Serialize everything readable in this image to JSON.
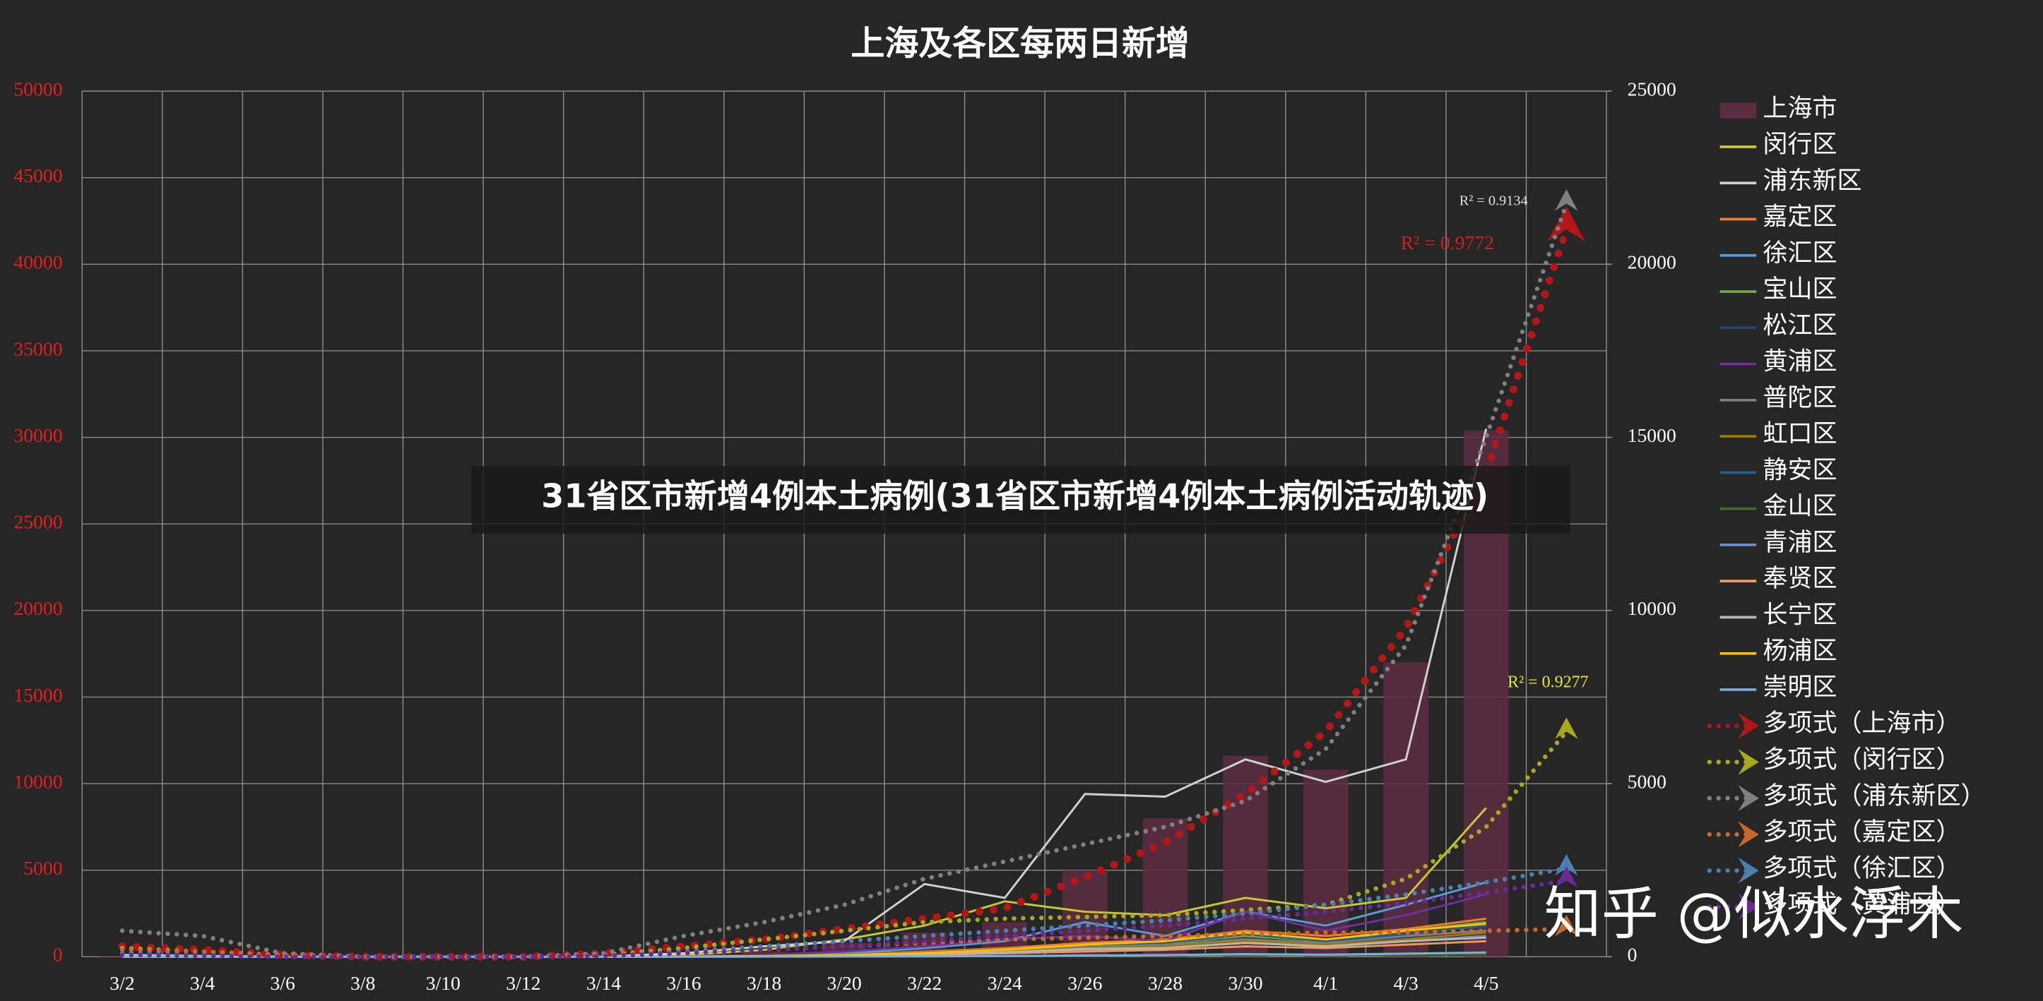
{
  "chart_data": {
    "type": "combo",
    "title": "上海及各区每两日新增",
    "categories": [
      "3/2",
      "3/4",
      "3/6",
      "3/8",
      "3/10",
      "3/12",
      "3/14",
      "3/16",
      "3/18",
      "3/20",
      "3/22",
      "3/24",
      "3/26",
      "3/28",
      "3/30",
      "4/1",
      "4/3",
      "4/5",
      null
    ],
    "ylim": [
      0,
      50000
    ],
    "yticks": [
      0,
      5000,
      10000,
      15000,
      20000,
      25000,
      30000,
      35000,
      40000,
      45000,
      50000
    ],
    "y2lim": [
      0,
      25000
    ],
    "y2ticks": [
      0,
      5000,
      10000,
      15000,
      20000,
      25000
    ],
    "grid": true,
    "series": [
      {
        "name": "上海市",
        "type": "bar",
        "axis": "y2",
        "color": "#5a2d40",
        "values": [
          20,
          10,
          5,
          5,
          5,
          5,
          10,
          50,
          150,
          400,
          700,
          1000,
          2500,
          4000,
          5800,
          5400,
          8500,
          15200,
          null
        ]
      },
      {
        "name": "闵行区",
        "type": "line",
        "color": "#c8c832",
        "values": [
          50,
          30,
          10,
          5,
          5,
          5,
          10,
          100,
          400,
          1000,
          1800,
          3200,
          2600,
          2400,
          3400,
          2800,
          3400,
          8600,
          null
        ]
      },
      {
        "name": "浦东新区",
        "type": "line",
        "color": "#d0d0d0",
        "values": [
          100,
          50,
          20,
          5,
          5,
          5,
          20,
          200,
          600,
          900,
          4200,
          3400,
          9400,
          9250,
          11400,
          10100,
          11400,
          30500,
          null
        ]
      },
      {
        "name": "嘉定区",
        "type": "line",
        "color": "#ed7d31",
        "values": [
          0,
          0,
          0,
          0,
          0,
          0,
          0,
          20,
          60,
          150,
          300,
          500,
          800,
          1000,
          1500,
          1200,
          1600,
          2200,
          null
        ]
      },
      {
        "name": "徐汇区",
        "type": "line",
        "color": "#5b9bd5",
        "values": [
          0,
          0,
          0,
          0,
          0,
          0,
          0,
          30,
          80,
          200,
          500,
          900,
          2000,
          1200,
          2600,
          1800,
          3000,
          4300,
          null
        ]
      },
      {
        "name": "宝山区",
        "type": "line",
        "color": "#70ad47",
        "values": [
          0,
          0,
          0,
          0,
          0,
          0,
          0,
          10,
          50,
          100,
          200,
          400,
          700,
          800,
          1200,
          900,
          1500,
          2000,
          null
        ]
      },
      {
        "name": "松江区",
        "type": "line",
        "color": "#264478",
        "values": [
          0,
          0,
          0,
          0,
          0,
          0,
          0,
          10,
          30,
          80,
          150,
          300,
          500,
          600,
          900,
          700,
          1100,
          1600,
          null
        ]
      },
      {
        "name": "黄浦区",
        "type": "line",
        "color": "#7030a0",
        "values": [
          0,
          0,
          0,
          0,
          0,
          0,
          0,
          20,
          100,
          300,
          600,
          1000,
          1200,
          900,
          2600,
          1500,
          2400,
          3600,
          null
        ]
      },
      {
        "name": "普陀区",
        "type": "line",
        "color": "#7f7f7f",
        "values": [
          0,
          0,
          0,
          0,
          0,
          0,
          0,
          10,
          40,
          100,
          200,
          350,
          600,
          700,
          1000,
          800,
          1200,
          1500,
          null
        ]
      },
      {
        "name": "虹口区",
        "type": "line",
        "color": "#9e7b00",
        "values": [
          0,
          0,
          0,
          0,
          0,
          0,
          0,
          10,
          30,
          90,
          180,
          300,
          500,
          600,
          900,
          700,
          1000,
          1400,
          null
        ]
      },
      {
        "name": "静安区",
        "type": "line",
        "color": "#255e91",
        "values": [
          0,
          0,
          0,
          0,
          0,
          0,
          0,
          10,
          40,
          120,
          250,
          400,
          700,
          800,
          1300,
          900,
          1300,
          1800,
          null
        ]
      },
      {
        "name": "金山区",
        "type": "line",
        "color": "#43682b",
        "values": [
          0,
          0,
          0,
          0,
          0,
          0,
          0,
          0,
          5,
          10,
          20,
          40,
          60,
          80,
          100,
          90,
          120,
          150,
          null
        ]
      },
      {
        "name": "青浦区",
        "type": "line",
        "color": "#698ed0",
        "values": [
          0,
          0,
          0,
          0,
          0,
          0,
          0,
          10,
          20,
          60,
          120,
          200,
          400,
          500,
          800,
          600,
          900,
          1200,
          null
        ]
      },
      {
        "name": "奉贤区",
        "type": "line",
        "color": "#f1975a",
        "values": [
          0,
          0,
          0,
          0,
          0,
          0,
          0,
          5,
          20,
          50,
          100,
          200,
          300,
          400,
          600,
          500,
          700,
          900,
          null
        ]
      },
      {
        "name": "长宁区",
        "type": "line",
        "color": "#b7b7b7",
        "values": [
          0,
          0,
          0,
          0,
          0,
          0,
          0,
          10,
          30,
          80,
          160,
          260,
          450,
          500,
          800,
          600,
          900,
          1100,
          null
        ]
      },
      {
        "name": "杨浦区",
        "type": "line",
        "color": "#ffc000",
        "values": [
          0,
          0,
          0,
          0,
          0,
          0,
          0,
          10,
          40,
          100,
          220,
          400,
          700,
          900,
          1400,
          1000,
          1500,
          1900,
          null
        ]
      },
      {
        "name": "崇明区",
        "type": "line",
        "color": "#7cafdd",
        "values": [
          0,
          0,
          0,
          0,
          0,
          0,
          0,
          0,
          5,
          10,
          20,
          40,
          80,
          100,
          150,
          120,
          180,
          250,
          null
        ]
      }
    ],
    "trendlines": [
      {
        "name": "多项式（上海市）",
        "axis": "y2",
        "color": "#b01818",
        "values": [
          300,
          200,
          50,
          0,
          0,
          0,
          100,
          300,
          500,
          800,
          1100,
          1400,
          2300,
          3300,
          4700,
          6500,
          9500,
          14000,
          21000
        ]
      },
      {
        "name": "多项式（闵行区）",
        "color": "#a8a820",
        "values": [
          500,
          300,
          100,
          0,
          0,
          0,
          100,
          500,
          1000,
          1500,
          2000,
          2200,
          2300,
          2400,
          2700,
          3000,
          4500,
          7500,
          13000
        ]
      },
      {
        "name": "多项式（浦东新区）",
        "color": "#808080",
        "values": [
          1500,
          1200,
          200,
          0,
          0,
          0,
          200,
          1200,
          2000,
          3000,
          4500,
          5500,
          6500,
          7500,
          9000,
          12000,
          18000,
          30000,
          43500
        ]
      },
      {
        "name": "多项式（嘉定区）",
        "color": "#c8682a",
        "values": [
          400,
          300,
          100,
          0,
          0,
          0,
          50,
          200,
          400,
          600,
          800,
          1000,
          1100,
          1200,
          1300,
          1400,
          1400,
          1500,
          1600
        ]
      },
      {
        "name": "多项式（徐汇区）",
        "color": "#4a7fae",
        "values": [
          200,
          100,
          0,
          0,
          0,
          0,
          50,
          300,
          600,
          900,
          1200,
          1500,
          1800,
          2100,
          2500,
          3000,
          3600,
          4300,
          5100
        ]
      },
      {
        "name": "多项式（黄浦区）",
        "color": "#6a2a98",
        "values": [
          100,
          50,
          0,
          0,
          0,
          0,
          50,
          200,
          400,
          600,
          900,
          1200,
          1500,
          1800,
          2200,
          2600,
          3100,
          3700,
          4400
        ]
      }
    ],
    "annotations": [
      {
        "text": "R² = 0.9134",
        "color": "#e0e0e0"
      },
      {
        "text": "R² = 0.9772",
        "color": "#d02020"
      },
      {
        "text": "R² = 0.9277",
        "color": "#e8e832"
      }
    ]
  },
  "banner": "31省区市新增4例本土病例(31省区市新增4例本土病例活动轨迹)",
  "watermark": "知乎 @似水浮木"
}
